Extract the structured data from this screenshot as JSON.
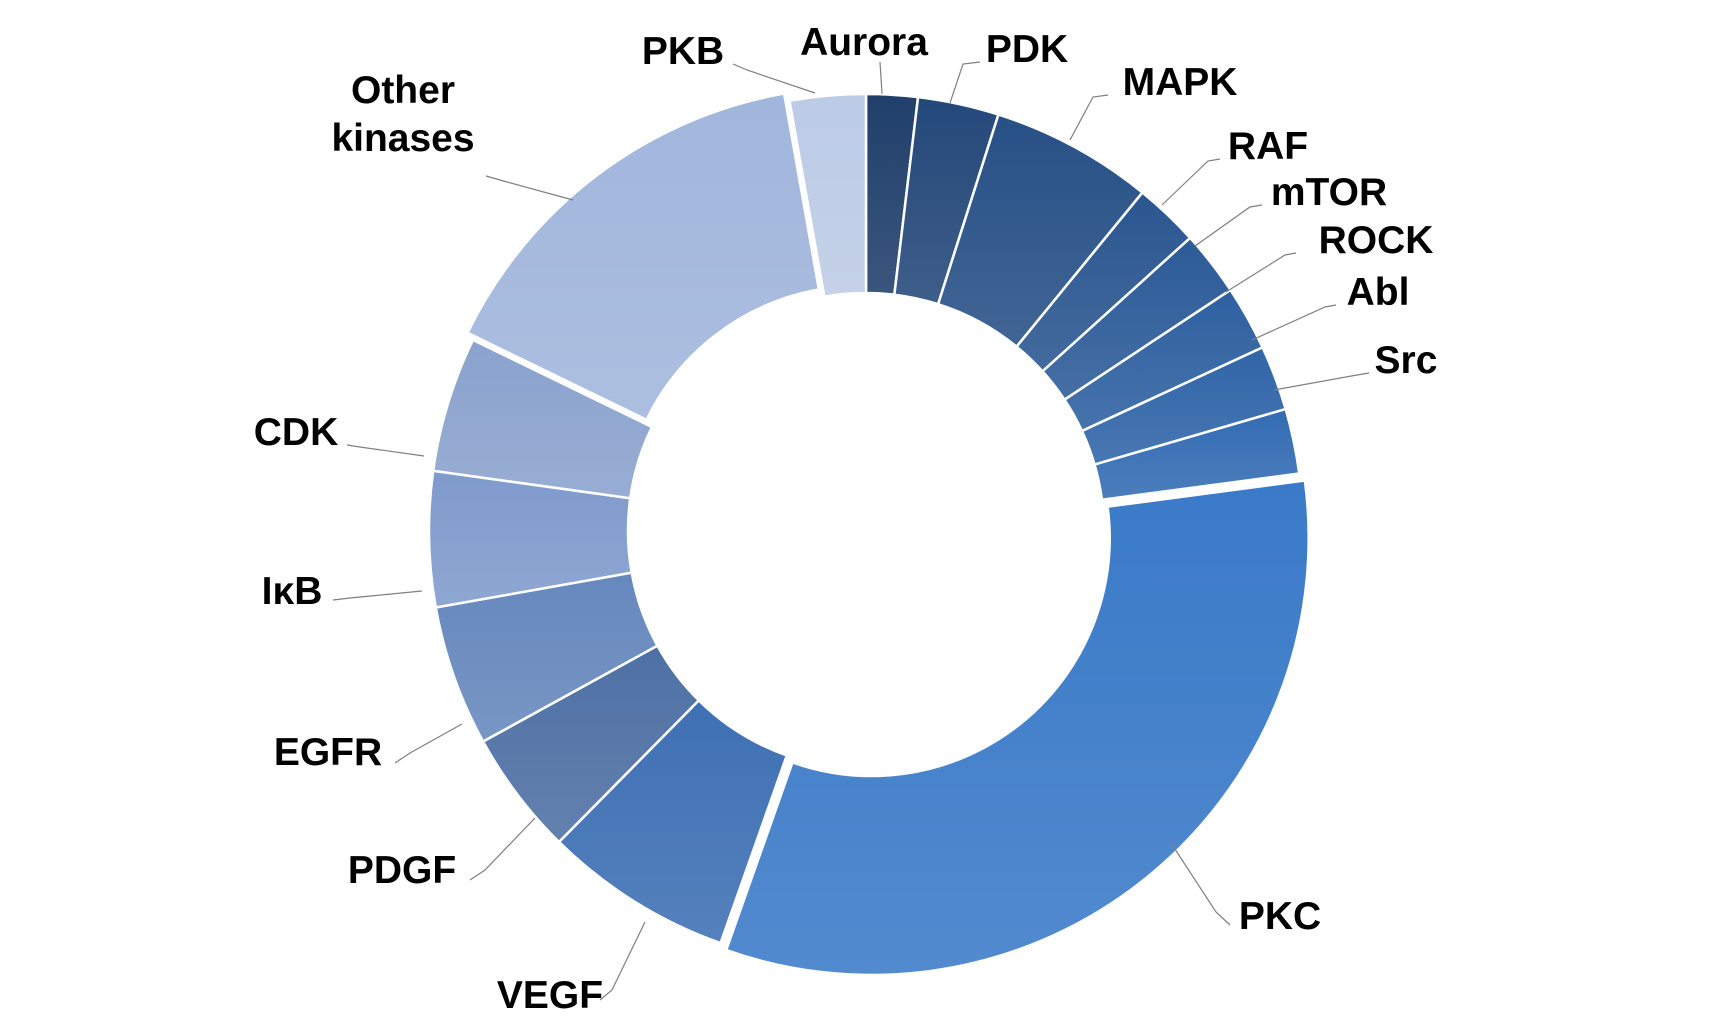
{
  "chart_data": {
    "type": "donut",
    "title": "",
    "start_angle_deg": 0,
    "direction": "clockwise",
    "exploded": [
      "PKC",
      "Other kinases"
    ],
    "slices": [
      {
        "label": "Aurora",
        "value": 1.9,
        "color": "#203f6b"
      },
      {
        "label": "PDK",
        "value": 3.0,
        "color": "#24487a"
      },
      {
        "label": "MAPK",
        "value": 6.0,
        "color": "#275086"
      },
      {
        "label": "RAF",
        "value": 2.4,
        "color": "#2a5690"
      },
      {
        "label": "mTOR",
        "value": 2.4,
        "color": "#2c5b98"
      },
      {
        "label": "ROCK",
        "value": 2.4,
        "color": "#2e60a0"
      },
      {
        "label": "Abl",
        "value": 2.4,
        "color": "#3065a8"
      },
      {
        "label": "Src",
        "value": 2.4,
        "color": "#336cb3"
      },
      {
        "label": "PKC",
        "value": 32.5,
        "color": "#3a7ac8"
      },
      {
        "label": "VEGF",
        "value": 7.0,
        "color": "#3e70b4"
      },
      {
        "label": "PDGF",
        "value": 4.6,
        "color": "#4e70a4"
      },
      {
        "label": "EGFR",
        "value": 5.2,
        "color": "#6688bd"
      },
      {
        "label": "IκB",
        "value": 5.0,
        "color": "#7f9bcc"
      },
      {
        "label": "CDK",
        "value": 5.0,
        "color": "#8aa2cd"
      },
      {
        "label": "Other kinases",
        "value": 15.0,
        "color": "#a1b6dc"
      },
      {
        "label": "PKB",
        "value": 2.8,
        "color": "#bccbe6"
      }
    ],
    "legend": "none",
    "label_placement": "outside with leader lines"
  }
}
